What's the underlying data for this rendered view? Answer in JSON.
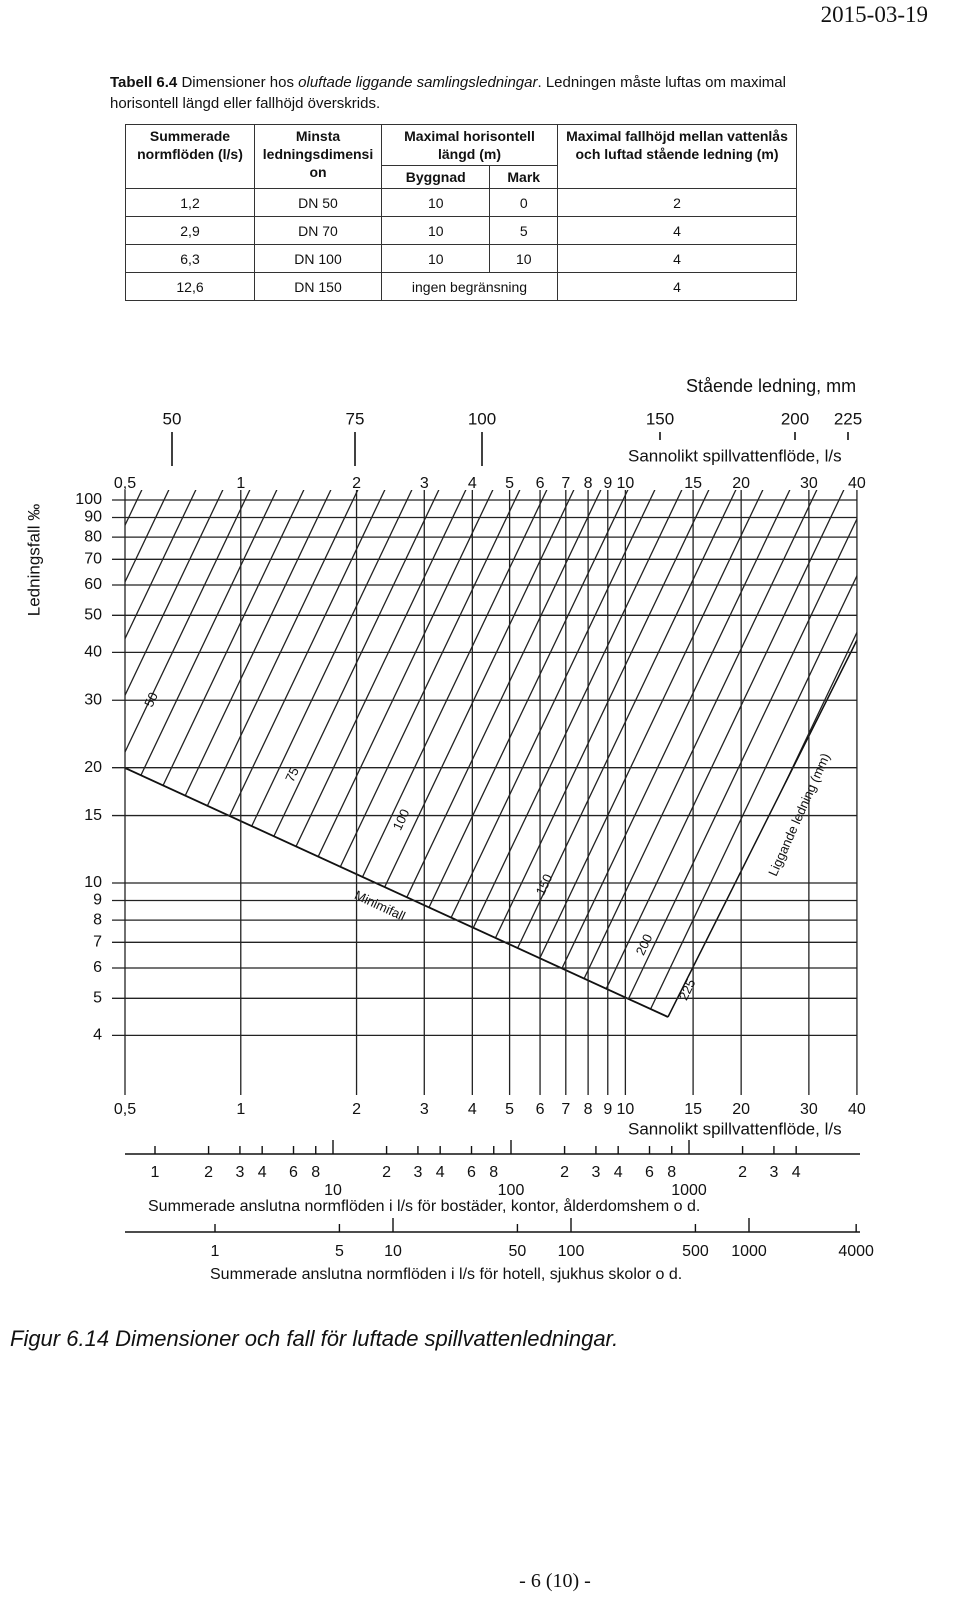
{
  "header": {
    "date": "2015-03-19"
  },
  "table": {
    "caption": {
      "prefix": "Tabell 6.4",
      "text": "Dimensioner hos ",
      "emphasis": "oluftade liggande samlingsledningar",
      "rest": ". Ledningen måste luftas om maximal horisontell längd eller fallhöjd överskrids."
    },
    "columns": [
      "Summerade normflöden (l/s)",
      "Minsta ledningsdimension",
      "Maximal horisontell längd (m)",
      "Maximal fallhöjd mellan vattenlås och luftad stående ledning (m)"
    ],
    "subcolumns": [
      "Byggnad",
      "Mark"
    ],
    "rows": [
      [
        "1,2",
        "DN 50",
        "10",
        "0",
        "2"
      ],
      [
        "2,9",
        "DN 70",
        "10",
        "5",
        "4"
      ],
      [
        "6,3",
        "DN 100",
        "10",
        "10",
        "4"
      ],
      [
        "12,6",
        "DN 150",
        "ingen begränsning",
        "4"
      ]
    ]
  },
  "figure": {
    "standing_pipe": {
      "title": "Stående ledning, mm",
      "ticks": [
        50,
        75,
        100,
        150,
        200,
        225
      ]
    },
    "flow_axis": {
      "title": "Sannolikt spillvattenflöde, l/s",
      "ticks": [
        {
          "value": 0.5,
          "label": "0,5"
        },
        1,
        2,
        3,
        4,
        5,
        6,
        7,
        8,
        9,
        10,
        15,
        20,
        30,
        40
      ]
    },
    "slope_axis": {
      "title": "Ledningsfall ‰",
      "ticks": [
        100,
        90,
        80,
        70,
        60,
        50,
        40,
        30,
        20,
        15,
        10,
        9,
        8,
        7,
        6,
        5,
        4
      ]
    },
    "pipe_labels": [
      "50",
      "75",
      "100",
      "150",
      "200",
      "225"
    ],
    "min_slope_label": "Minimifall",
    "pipe_axis_label": "Liggande ledning (mm)",
    "scale_residential": {
      "title": "Summerade anslutna normflöden i l/s för bostäder, kontor, ålderdomshem o d.",
      "ticks": [
        1,
        2,
        3,
        4,
        6,
        8,
        10,
        {
          "value": 20,
          "label": "2"
        },
        {
          "value": 30,
          "label": "3"
        },
        {
          "value": 40,
          "label": "4"
        },
        {
          "value": 60,
          "label": "6"
        },
        {
          "value": 80,
          "label": "8"
        },
        100,
        {
          "value": 200,
          "label": "2"
        },
        {
          "value": 300,
          "label": "3"
        },
        {
          "value": 400,
          "label": "4"
        },
        {
          "value": 600,
          "label": "6"
        },
        {
          "value": 800,
          "label": "8"
        },
        1000,
        {
          "value": 2000,
          "label": "2"
        },
        {
          "value": 3000,
          "label": "3"
        },
        {
          "value": 4000,
          "label": "4"
        }
      ]
    },
    "scale_hotel": {
      "title": "Summerade anslutna normflöden i l/s för hotell, sjukhus skolor o d.",
      "ticks": [
        1,
        5,
        10,
        50,
        100,
        500,
        1000,
        4000
      ]
    },
    "caption": "Figur 6.14 Dimensioner och fall för luftade spillvattenledningar."
  },
  "footer": {
    "page": "- 6 (10) -"
  }
}
